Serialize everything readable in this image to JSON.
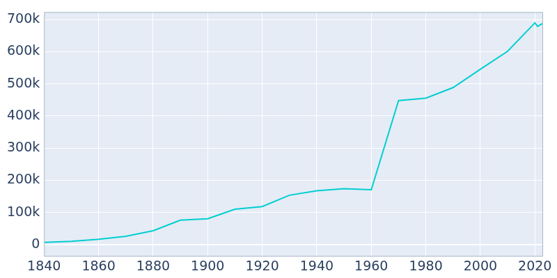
{
  "chart_data": {
    "type": "line",
    "x": [
      1840,
      1850,
      1860,
      1870,
      1880,
      1890,
      1900,
      1910,
      1920,
      1930,
      1940,
      1950,
      1960,
      1970,
      1980,
      1990,
      2000,
      2010,
      2020,
      2021,
      2022,
      2023
    ],
    "values": [
      6929,
      10165,
      16988,
      25865,
      43350,
      76168,
      80865,
      110364,
      118342,
      153866,
      167402,
      174307,
      170874,
      448003,
      455651,
      488374,
      545524,
      601222,
      689447,
      678851,
      683622,
      687788
    ],
    "color": "#00CED1",
    "xlim": [
      1840,
      2023
    ],
    "xticks": [
      1840,
      1860,
      1880,
      1900,
      1920,
      1940,
      1960,
      1980,
      2000,
      2020
    ],
    "ylim": [
      -37000,
      723000
    ],
    "yticks": [
      0,
      {
        "value": 100000,
        "label": "100k"
      },
      {
        "value": 200000,
        "label": "200k"
      },
      {
        "value": 300000,
        "label": "300k"
      },
      {
        "value": 400000,
        "label": "400k"
      },
      {
        "value": 500000,
        "label": "500k"
      },
      {
        "value": 600000,
        "label": "600k"
      },
      {
        "value": 700000,
        "label": "700k"
      }
    ],
    "grid": true
  }
}
